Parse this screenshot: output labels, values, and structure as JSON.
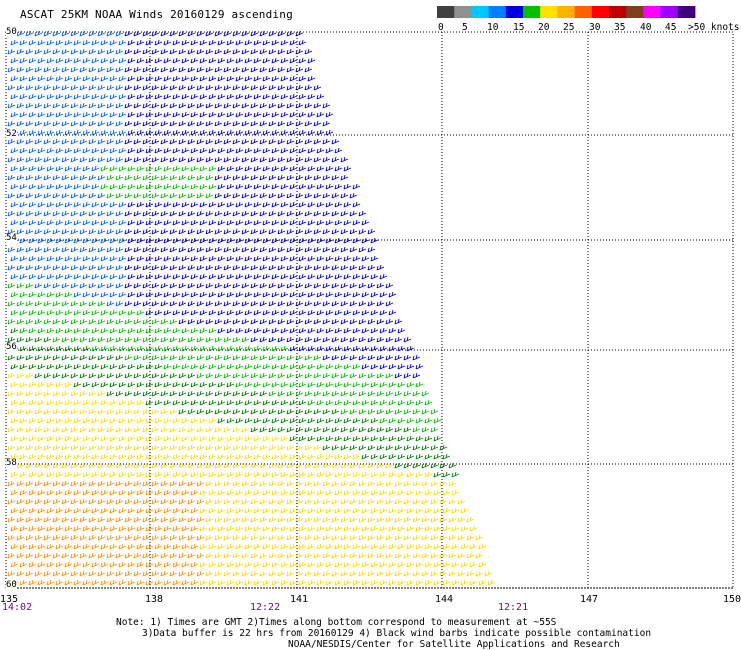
{
  "title": "ASCAT 25KM NOAA Winds 20160129 ascending",
  "colorbar": {
    "ticks": [
      "0",
      "5",
      "10",
      "15",
      "20",
      "25",
      "30",
      "35",
      "40",
      "45",
      ">50 knots"
    ],
    "colors": [
      "#404040",
      "#909090",
      "#00c8ff",
      "#0080ff",
      "#0000e0",
      "#00c000",
      "#ffe000",
      "#ffb000",
      "#ff6000",
      "#ff0000",
      "#c00000",
      "#804020",
      "#ff00ff",
      "#a000ff",
      "#400080"
    ]
  },
  "map": {
    "lon_labels": [
      "135",
      "138",
      "141",
      "144",
      "147",
      "150"
    ],
    "lat_labels": [
      "50",
      "52",
      "54",
      "56",
      "58",
      "60"
    ],
    "time_labels": [
      "14:02",
      "12:22",
      "12:21"
    ]
  },
  "notes": {
    "line1": "Note: 1) Times are GMT 2)Times along bottom correspond to measurement at ~55S",
    "line2": "3)Data buffer is 22 hrs from 20160129 4) Black wind barbs indicate possible contamination",
    "line3": "NOAA/NESDIS/Center for Satellite Applications and Research"
  }
}
